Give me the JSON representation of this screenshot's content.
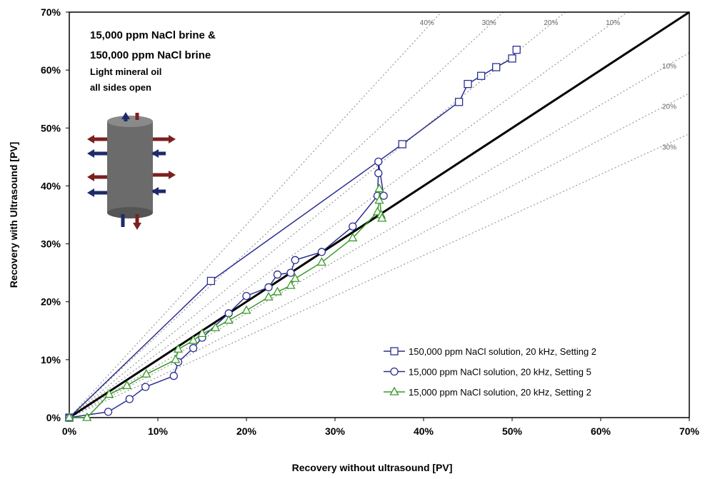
{
  "chart_data": {
    "type": "line",
    "x_label": "Recovery without ultrasound [PV]",
    "y_label": "Recovery with Ultrasound [PV]",
    "annotations": [
      "15,000 ppm NaCl brine &",
      "150,000 ppm NaCl brine",
      "Light mineral oil",
      "all sides open"
    ],
    "xlim": [
      0,
      70
    ],
    "ylim": [
      0,
      70
    ],
    "xticks": [
      {
        "value": 0,
        "label": "0%"
      },
      {
        "value": 10,
        "label": "10%"
      },
      {
        "value": 20,
        "label": "20%"
      },
      {
        "value": 30,
        "label": "30%"
      },
      {
        "value": 40,
        "label": "40%"
      },
      {
        "value": 50,
        "label": "50%"
      },
      {
        "value": 60,
        "label": "60%"
      },
      {
        "value": 70,
        "label": "70%"
      }
    ],
    "yticks": [
      {
        "value": 0,
        "label": "0%"
      },
      {
        "value": 10,
        "label": "10%"
      },
      {
        "value": 20,
        "label": "20%"
      },
      {
        "value": 30,
        "label": "30%"
      },
      {
        "value": 40,
        "label": "40%"
      },
      {
        "value": 50,
        "label": "50%"
      },
      {
        "value": 60,
        "label": "60%"
      },
      {
        "value": 70,
        "label": "70%"
      }
    ],
    "diagonal": true,
    "reference_lines": [
      {
        "value": 40,
        "label": "40%",
        "side": "above"
      },
      {
        "value": 30,
        "label": "30%",
        "side": "above"
      },
      {
        "value": 20,
        "label": "20%",
        "side": "above"
      },
      {
        "value": 10,
        "label": "10%",
        "side": "above"
      },
      {
        "value": 10,
        "label": "10%",
        "side": "below"
      },
      {
        "value": 20,
        "label": "20%",
        "side": "below"
      },
      {
        "value": 30,
        "label": "30%",
        "side": "below"
      }
    ],
    "legend": "lower-right",
    "series": [
      {
        "name": "150,000 ppm NaCl solution, 20 kHz, Setting 2",
        "color": "#2b2f8f",
        "marker": "square",
        "x": [
          0,
          16.0,
          37.6,
          44.0,
          45.0,
          46.5,
          48.2,
          50.0,
          50.5
        ],
        "values": [
          0,
          23.6,
          47.2,
          54.5,
          57.6,
          59.0,
          60.5,
          62.0,
          63.5
        ]
      },
      {
        "name": "15,000 ppm NaCl solution, 20 kHz, Setting 5",
        "color": "#2b2f8f",
        "marker": "circle",
        "x": [
          0,
          4.4,
          6.8,
          8.6,
          11.8,
          12.3,
          14.0,
          15.0,
          18.0,
          20.0,
          22.5,
          23.5,
          25.0,
          25.5,
          28.5,
          32.0,
          34.8,
          34.9,
          34.9,
          35.5
        ],
        "values": [
          0,
          1.0,
          3.2,
          5.3,
          7.2,
          9.6,
          12.0,
          13.8,
          18.0,
          21.0,
          22.5,
          24.7,
          25.0,
          27.2,
          28.6,
          33.0,
          38.3,
          42.2,
          44.2,
          38.3
        ]
      },
      {
        "name": "15,000 ppm NaCl solution, 20 kHz, Setting 2",
        "color": "#3a9a2a",
        "marker": "triangle",
        "x": [
          0,
          2.0,
          4.5,
          6.5,
          8.7,
          12.0,
          12.3,
          14.0,
          15.0,
          16.5,
          18.0,
          20.0,
          22.5,
          23.5,
          25.0,
          25.5,
          28.5,
          32.0,
          34.8,
          35.0,
          35.0,
          35.2,
          35.3
        ],
        "values": [
          0,
          0,
          4.0,
          5.5,
          7.5,
          10.0,
          11.8,
          13.3,
          14.5,
          15.5,
          16.8,
          18.5,
          20.8,
          21.7,
          22.8,
          24.0,
          26.8,
          31.0,
          35.5,
          37.5,
          39.5,
          35.0,
          34.4
        ]
      }
    ]
  }
}
